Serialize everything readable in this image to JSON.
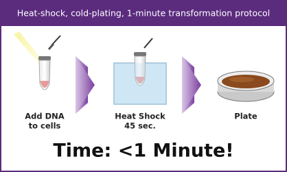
{
  "header": {
    "title": "Heat-shock, cold-plating, 1-minute transformation protocol"
  },
  "steps": [
    {
      "lines": [
        "Add DNA",
        "to cells"
      ]
    },
    {
      "lines": [
        "Heat Shock",
        "45 sec."
      ]
    },
    {
      "lines": [
        "Plate"
      ]
    }
  ],
  "footer": {
    "text": "Time: <1 Minute!"
  }
}
